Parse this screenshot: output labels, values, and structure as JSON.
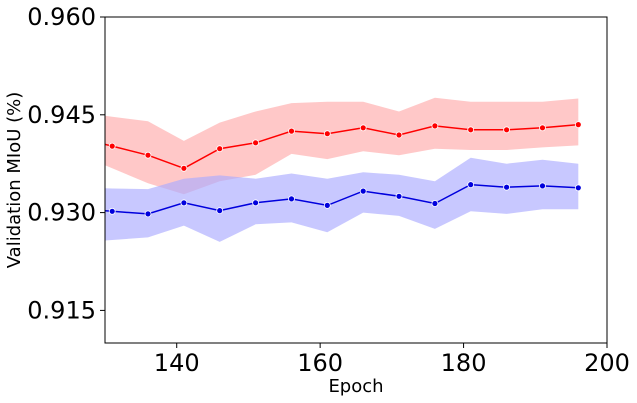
{
  "chart_data": {
    "type": "line",
    "title": "",
    "xlabel": "Epoch",
    "ylabel": "Validation MIoU (%)",
    "xlim": [
      130,
      200
    ],
    "ylim": [
      0.91,
      0.96
    ],
    "x_ticks": [
      140,
      160,
      180,
      200
    ],
    "y_ticks": [
      0.915,
      0.93,
      0.945,
      0.96
    ],
    "x_tick_labels": [
      "140",
      "160",
      "180",
      "200"
    ],
    "y_tick_labels": [
      "0.915",
      "0.930",
      "0.945",
      "0.960"
    ],
    "grid": false,
    "series": [
      {
        "color": "#ff0000",
        "band_color": "#ffaaaa",
        "x": [
          131,
          136,
          141,
          146,
          151,
          156,
          161,
          166,
          171,
          176,
          181,
          186,
          191,
          196
        ],
        "y": [
          0.9402,
          0.9388,
          0.9368,
          0.9398,
          0.9407,
          0.9425,
          0.9421,
          0.943,
          0.9419,
          0.9433,
          0.9427,
          0.9427,
          0.943,
          0.9435
        ],
        "lower": [
          0.9368,
          0.9345,
          0.9328,
          0.9348,
          0.9358,
          0.939,
          0.9382,
          0.9394,
          0.9388,
          0.9398,
          0.9396,
          0.9396,
          0.94,
          0.9403
        ],
        "upper": [
          0.9447,
          0.944,
          0.941,
          0.9438,
          0.9455,
          0.9468,
          0.947,
          0.947,
          0.9455,
          0.9476,
          0.947,
          0.947,
          0.947,
          0.9475
        ]
      },
      {
        "color": "#0000dd",
        "band_color": "#aaaaff",
        "x": [
          131,
          136,
          141,
          146,
          151,
          156,
          161,
          166,
          171,
          176,
          181,
          186,
          191,
          196
        ],
        "y": [
          0.9302,
          0.9298,
          0.9315,
          0.9303,
          0.9315,
          0.9321,
          0.9311,
          0.9333,
          0.9325,
          0.9314,
          0.9343,
          0.9339,
          0.9341,
          0.9338
        ],
        "lower": [
          0.9258,
          0.9262,
          0.928,
          0.9255,
          0.9282,
          0.9285,
          0.927,
          0.93,
          0.9295,
          0.9275,
          0.9302,
          0.9298,
          0.9305,
          0.9305
        ],
        "upper": [
          0.9337,
          0.9336,
          0.9352,
          0.9357,
          0.9352,
          0.936,
          0.9352,
          0.9362,
          0.9358,
          0.9348,
          0.9384,
          0.9375,
          0.9381,
          0.9375
        ]
      }
    ]
  }
}
